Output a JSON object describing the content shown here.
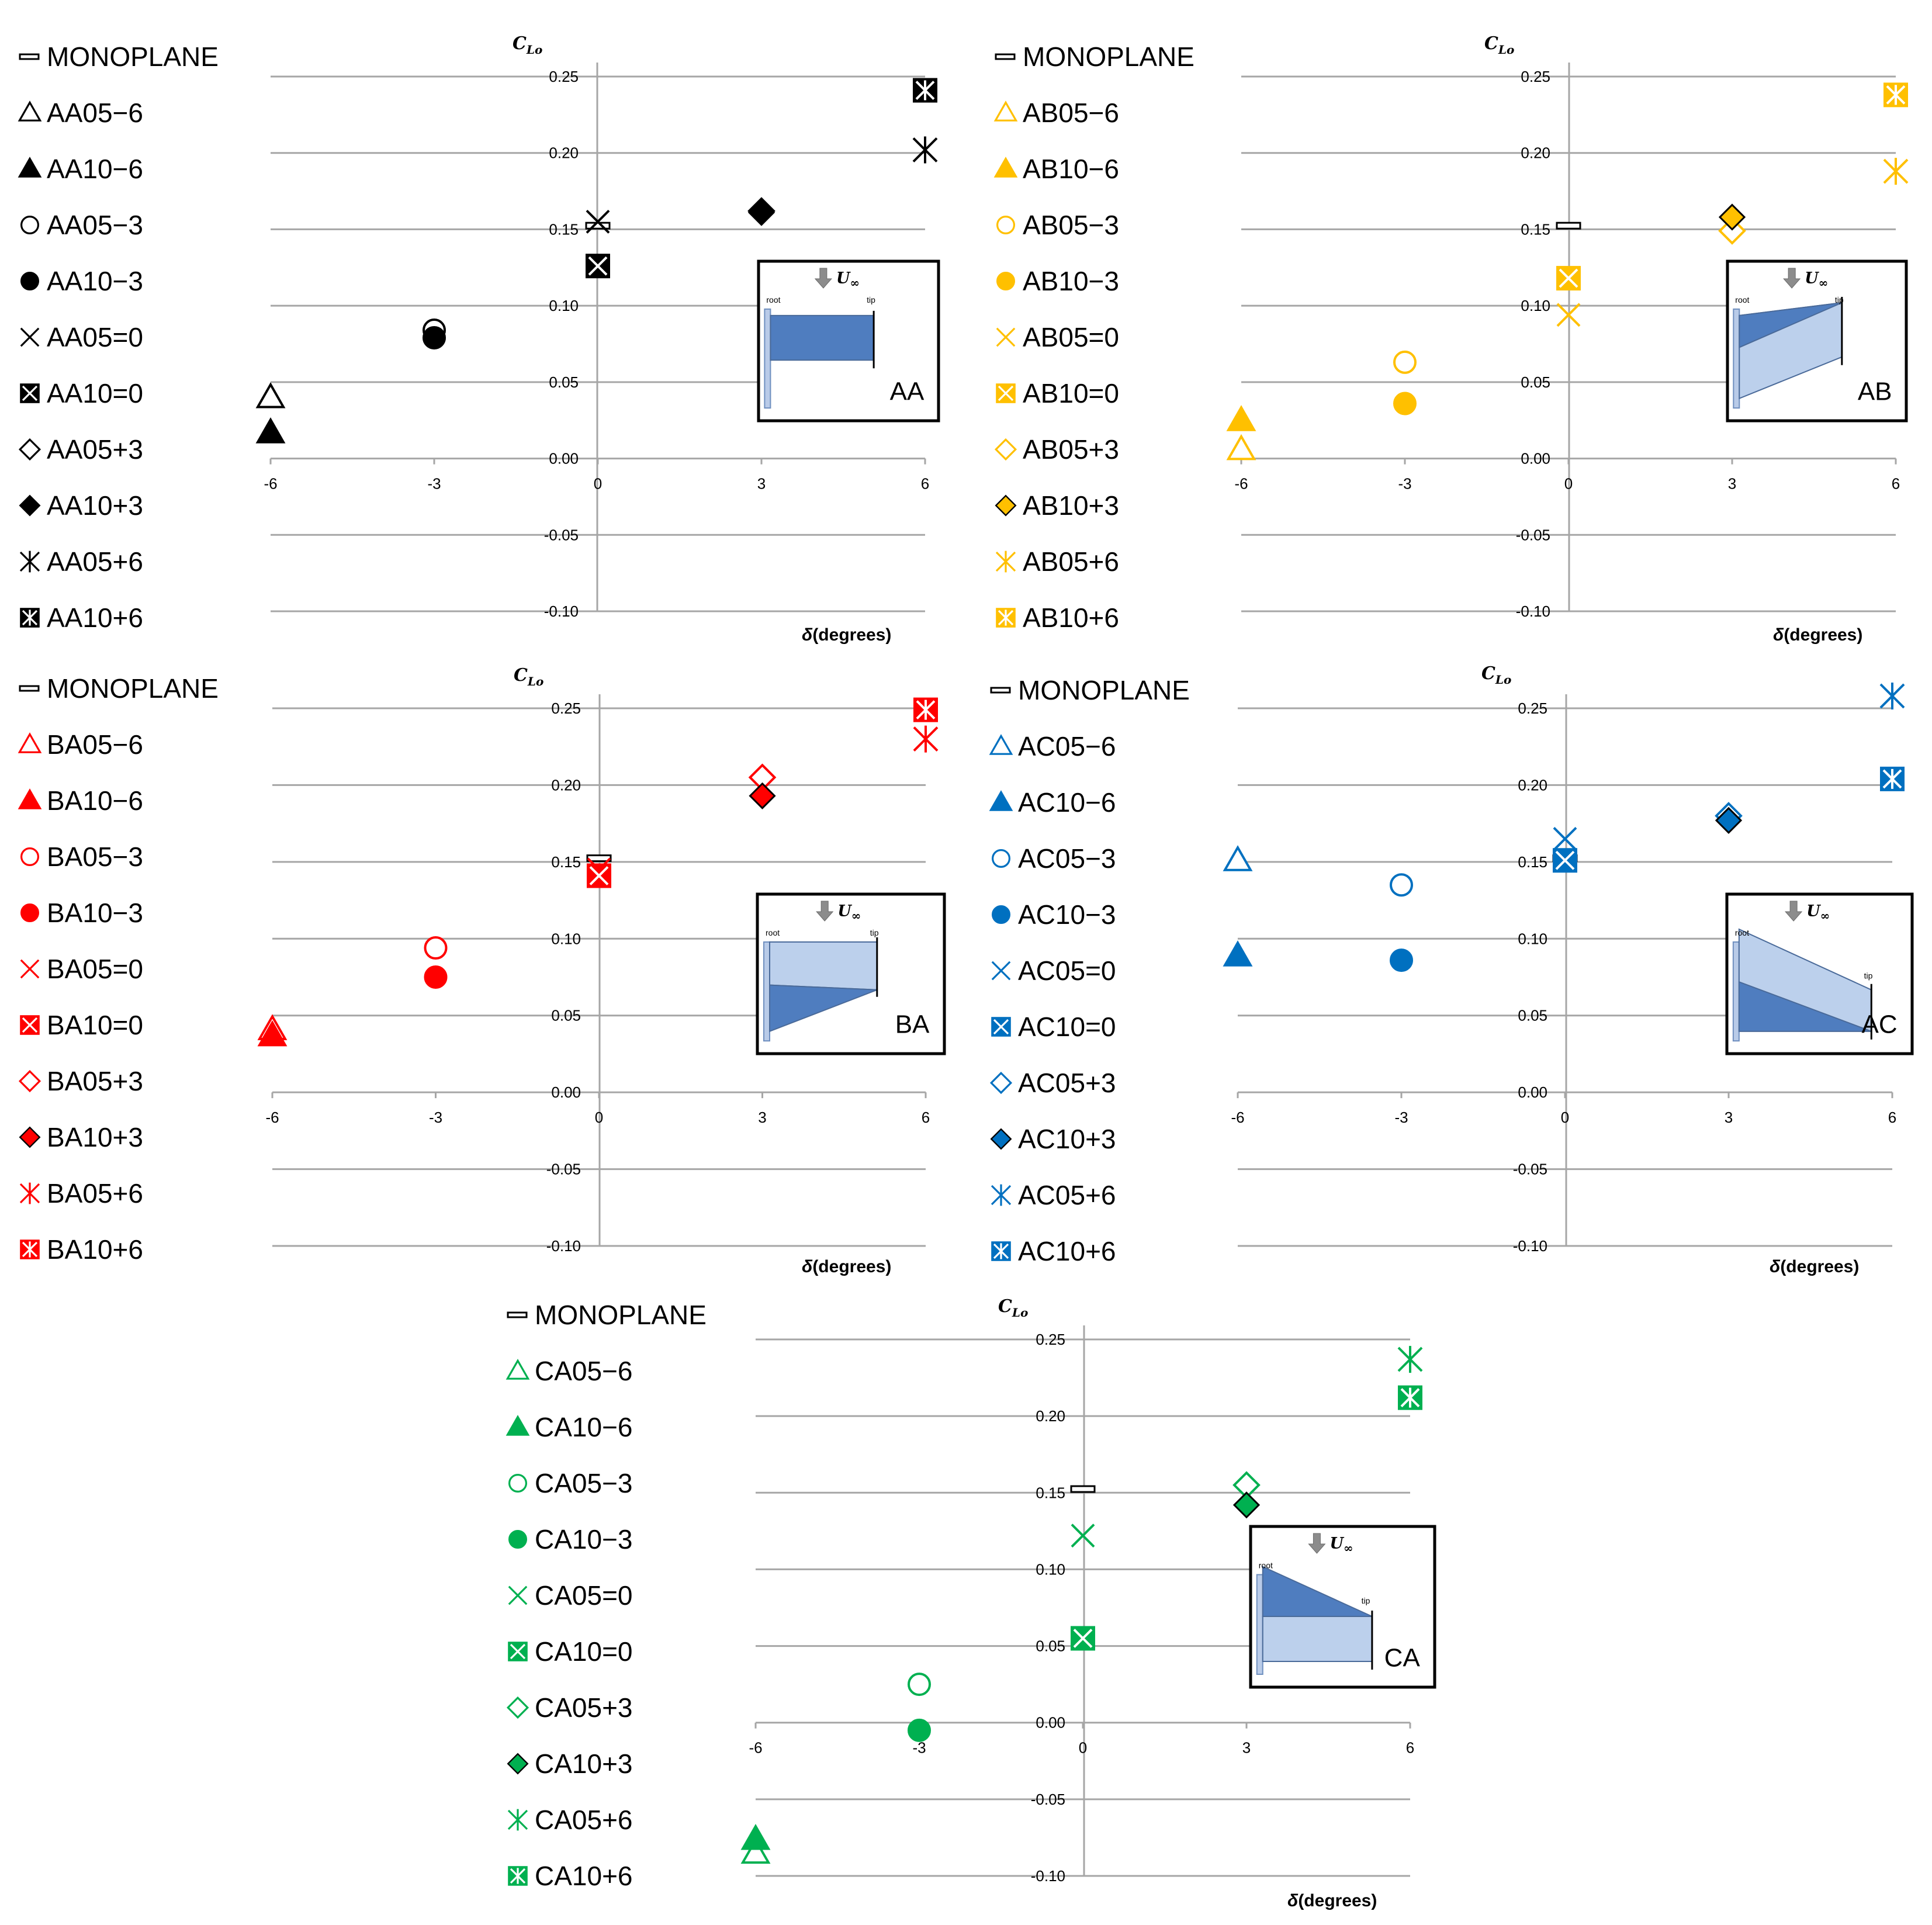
{
  "shared": {
    "y_label_main": "C",
    "y_label_sub": "Lo",
    "x_label_symbol": "δ",
    "x_label_text": "(degrees)",
    "inset_root": "root",
    "inset_tip": "tip",
    "inset_flow_label": "U",
    "inset_flow_sub": "∞",
    "x_tick_labels": [
      "-6",
      "-3",
      "0",
      "3",
      "6"
    ],
    "y_tick_labels": [
      "0.25",
      "0.20",
      "0.15",
      "0.10",
      "0.05",
      "0.00",
      "-0.05",
      "-0.10"
    ]
  },
  "chart_data": [
    {
      "id": "AA",
      "type": "scatter",
      "title": "AA",
      "color": "#000000",
      "xlabel": "δ(degrees)",
      "ylabel": "CLo",
      "xlim": [
        -6,
        6
      ],
      "ylim": [
        -0.1,
        0.25
      ],
      "legend": [
        "MONOPLANE",
        "AA05−6",
        "AA10−6",
        "AA05−3",
        "AA10−3",
        "AA05=0",
        "AA10=0",
        "AA05+3",
        "AA10+3",
        "AA05+6",
        "AA10+6"
      ],
      "series": [
        {
          "name": "MONOPLANE",
          "marker": "dash",
          "points": [
            [
              0,
              0.152
            ]
          ]
        },
        {
          "name": "AA05−6",
          "marker": "tri-open",
          "points": [
            [
              -6,
              0.04
            ]
          ]
        },
        {
          "name": "AA10−6",
          "marker": "tri-fill",
          "points": [
            [
              -6,
              0.017
            ]
          ]
        },
        {
          "name": "AA05−3",
          "marker": "circ-open",
          "points": [
            [
              -3,
              0.084
            ]
          ]
        },
        {
          "name": "AA10−3",
          "marker": "circ-fill",
          "points": [
            [
              -3,
              0.079
            ]
          ]
        },
        {
          "name": "AA05=0",
          "marker": "x",
          "points": [
            [
              0,
              0.155
            ]
          ]
        },
        {
          "name": "AA10=0",
          "marker": "box-x",
          "points": [
            [
              0,
              0.126
            ]
          ]
        },
        {
          "name": "AA05+3",
          "marker": "dia-open",
          "points": [
            [
              3,
              0.162
            ]
          ]
        },
        {
          "name": "AA10+3",
          "marker": "dia-fill",
          "points": [
            [
              3,
              0.161
            ]
          ]
        },
        {
          "name": "AA05+6",
          "marker": "star",
          "points": [
            [
              6,
              0.202
            ]
          ]
        },
        {
          "name": "AA10+6",
          "marker": "box-star",
          "points": [
            [
              6,
              0.241
            ]
          ]
        }
      ]
    },
    {
      "id": "AB",
      "type": "scatter",
      "title": "AB",
      "color": "#FFC000",
      "xlabel": "δ(degrees)",
      "ylabel": "CLo",
      "xlim": [
        -6,
        6
      ],
      "ylim": [
        -0.1,
        0.25
      ],
      "legend": [
        "MONOPLANE",
        "AB05−6",
        "AB10−6",
        "AB05−3",
        "AB10−3",
        "AB05=0",
        "AB10=0",
        "AB05+3",
        "AB10+3",
        "AB05+6",
        "AB10+6"
      ],
      "series": [
        {
          "name": "MONOPLANE",
          "marker": "dash",
          "points": [
            [
              0,
              0.152
            ]
          ]
        },
        {
          "name": "AB05−6",
          "marker": "tri-open",
          "points": [
            [
              -6,
              0.006
            ]
          ]
        },
        {
          "name": "AB10−6",
          "marker": "tri-fill",
          "points": [
            [
              -6,
              0.025
            ]
          ]
        },
        {
          "name": "AB05−3",
          "marker": "circ-open",
          "points": [
            [
              -3,
              0.063
            ]
          ]
        },
        {
          "name": "AB10−3",
          "marker": "circ-fill",
          "points": [
            [
              -3,
              0.036
            ]
          ]
        },
        {
          "name": "AB05=0",
          "marker": "x",
          "points": [
            [
              0,
              0.094
            ]
          ]
        },
        {
          "name": "AB10=0",
          "marker": "box-x",
          "points": [
            [
              0,
              0.118
            ]
          ]
        },
        {
          "name": "AB05+3",
          "marker": "dia-open",
          "points": [
            [
              3,
              0.149
            ]
          ]
        },
        {
          "name": "AB10+3",
          "marker": "dia-fill",
          "points": [
            [
              3,
              0.158
            ]
          ]
        },
        {
          "name": "AB05+6",
          "marker": "star",
          "points": [
            [
              6,
              0.188
            ]
          ]
        },
        {
          "name": "AB10+6",
          "marker": "box-star",
          "points": [
            [
              6,
              0.238
            ]
          ]
        }
      ]
    },
    {
      "id": "BA",
      "type": "scatter",
      "title": "BA",
      "color": "#FF0000",
      "xlabel": "δ(degrees)",
      "ylabel": "CLo",
      "xlim": [
        -6,
        6
      ],
      "ylim": [
        -0.1,
        0.25
      ],
      "legend": [
        "MONOPLANE",
        "BA05−6",
        "BA10−6",
        "BA05−3",
        "BA10−3",
        "BA05=0",
        "BA10=0",
        "BA05+3",
        "BA10+3",
        "BA05+6",
        "BA10+6"
      ],
      "series": [
        {
          "name": "MONOPLANE",
          "marker": "dash",
          "points": [
            [
              0,
              0.152
            ]
          ]
        },
        {
          "name": "BA05−6",
          "marker": "tri-open",
          "points": [
            [
              -6,
              0.041
            ]
          ]
        },
        {
          "name": "BA10−6",
          "marker": "tri-fill",
          "points": [
            [
              -6,
              0.037
            ]
          ]
        },
        {
          "name": "BA05−3",
          "marker": "circ-open",
          "points": [
            [
              -3,
              0.094
            ]
          ]
        },
        {
          "name": "BA10−3",
          "marker": "circ-fill",
          "points": [
            [
              -3,
              0.075
            ]
          ]
        },
        {
          "name": "BA05=0",
          "marker": "x",
          "points": [
            [
              0,
              0.145
            ]
          ]
        },
        {
          "name": "BA10=0",
          "marker": "box-x",
          "points": [
            [
              0,
              0.141
            ]
          ]
        },
        {
          "name": "BA05+3",
          "marker": "dia-open",
          "points": [
            [
              3,
              0.205
            ]
          ]
        },
        {
          "name": "BA10+3",
          "marker": "dia-fill",
          "points": [
            [
              3,
              0.193
            ]
          ]
        },
        {
          "name": "BA05+6",
          "marker": "star",
          "points": [
            [
              6,
              0.23
            ]
          ]
        },
        {
          "name": "BA10+6",
          "marker": "box-star",
          "points": [
            [
              6,
              0.249
            ]
          ]
        }
      ]
    },
    {
      "id": "AC",
      "type": "scatter",
      "title": "AC",
      "color": "#0070C0",
      "xlabel": "δ(degrees)",
      "ylabel": "CLo",
      "xlim": [
        -6,
        6
      ],
      "ylim": [
        -0.1,
        0.25
      ],
      "legend": [
        "MONOPLANE",
        "AC05−6",
        "AC10−6",
        "AC05−3",
        "AC10−3",
        "AC05=0",
        "AC10=0",
        "AC05+3",
        "AC10+3",
        "AC05+6",
        "AC10+6"
      ],
      "series": [
        {
          "name": "MONOPLANE",
          "marker": "dash",
          "points": [
            [
              0,
              0.152
            ]
          ]
        },
        {
          "name": "AC05−6",
          "marker": "tri-open",
          "points": [
            [
              -6,
              0.151
            ]
          ]
        },
        {
          "name": "AC10−6",
          "marker": "tri-fill",
          "points": [
            [
              -6,
              0.089
            ]
          ]
        },
        {
          "name": "AC05−3",
          "marker": "circ-open",
          "points": [
            [
              -3,
              0.135
            ]
          ]
        },
        {
          "name": "AC10−3",
          "marker": "circ-fill",
          "points": [
            [
              -3,
              0.086
            ]
          ]
        },
        {
          "name": "AC05=0",
          "marker": "x",
          "points": [
            [
              0,
              0.165
            ]
          ]
        },
        {
          "name": "AC10=0",
          "marker": "box-x",
          "points": [
            [
              0,
              0.151
            ]
          ]
        },
        {
          "name": "AC05+3",
          "marker": "dia-open",
          "points": [
            [
              3,
              0.18
            ]
          ]
        },
        {
          "name": "AC10+3",
          "marker": "dia-fill",
          "points": [
            [
              3,
              0.177
            ]
          ]
        },
        {
          "name": "AC05+6",
          "marker": "star",
          "points": [
            [
              6,
              0.258
            ]
          ]
        },
        {
          "name": "AC10+6",
          "marker": "box-star",
          "points": [
            [
              6,
              0.204
            ]
          ]
        }
      ]
    },
    {
      "id": "CA",
      "type": "scatter",
      "title": "CA",
      "color": "#00B050",
      "xlabel": "δ(degrees)",
      "ylabel": "CLo",
      "xlim": [
        -6,
        6
      ],
      "ylim": [
        -0.1,
        0.25
      ],
      "legend": [
        "MONOPLANE",
        "CA05−6",
        "CA10−6",
        "CA05−3",
        "CA10−3",
        "CA05=0",
        "CA10=0",
        "CA05+3",
        "CA10+3",
        "CA05+6",
        "CA10+6"
      ],
      "series": [
        {
          "name": "MONOPLANE",
          "marker": "dash",
          "points": [
            [
              0,
              0.152
            ]
          ]
        },
        {
          "name": "CA05−6",
          "marker": "tri-open",
          "points": [
            [
              -6,
              -0.085
            ]
          ]
        },
        {
          "name": "CA10−6",
          "marker": "tri-fill",
          "points": [
            [
              -6,
              -0.076
            ]
          ]
        },
        {
          "name": "CA05−3",
          "marker": "circ-open",
          "points": [
            [
              -3,
              0.025
            ]
          ]
        },
        {
          "name": "CA10−3",
          "marker": "circ-fill",
          "points": [
            [
              -3,
              -0.005
            ]
          ]
        },
        {
          "name": "CA05=0",
          "marker": "x",
          "points": [
            [
              0,
              0.122
            ]
          ]
        },
        {
          "name": "CA10=0",
          "marker": "box-x",
          "points": [
            [
              0,
              0.055
            ]
          ]
        },
        {
          "name": "CA05+3",
          "marker": "dia-open",
          "points": [
            [
              3,
              0.155
            ]
          ]
        },
        {
          "name": "CA10+3",
          "marker": "dia-fill",
          "points": [
            [
              3,
              0.142
            ]
          ]
        },
        {
          "name": "CA05+6",
          "marker": "star",
          "points": [
            [
              6,
              0.237
            ]
          ]
        },
        {
          "name": "CA10+6",
          "marker": "box-star",
          "points": [
            [
              6,
              0.212
            ]
          ]
        }
      ]
    }
  ]
}
